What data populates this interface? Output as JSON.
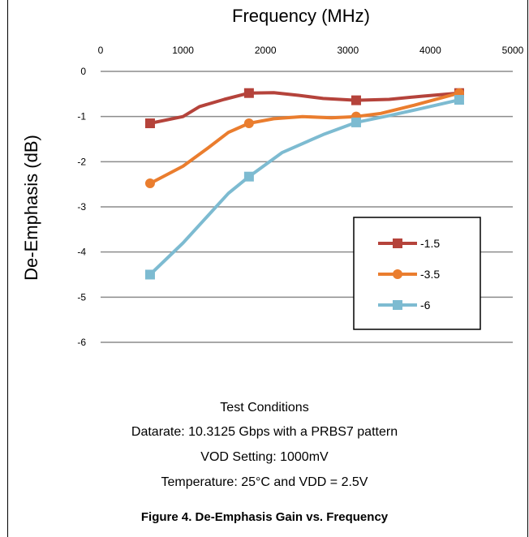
{
  "chart_data": {
    "type": "line",
    "title": "",
    "xlabel": "Frequency (MHz)",
    "ylabel": "De-Emphasis (dB)",
    "xlim": [
      0,
      5000
    ],
    "ylim": [
      -6,
      0
    ],
    "x_ticks": [
      0,
      1000,
      2000,
      3000,
      4000,
      5000
    ],
    "y_ticks": [
      0,
      -1,
      -2,
      -3,
      -4,
      -5,
      -6
    ],
    "x_axis_position": "top",
    "grid": "horizontal",
    "legend_position": "bottom-right inside plot",
    "series": [
      {
        "name": "-1.5",
        "color": "#b5433b",
        "marker": "square",
        "x": [
          600,
          1800,
          3100,
          4350
        ],
        "y": [
          -1.15,
          -0.48,
          -0.64,
          -0.48
        ],
        "curve": [
          [
            600,
            -1.15
          ],
          [
            1000,
            -1.0
          ],
          [
            1200,
            -0.78
          ],
          [
            1500,
            -0.62
          ],
          [
            1800,
            -0.48
          ],
          [
            2100,
            -0.47
          ],
          [
            2400,
            -0.53
          ],
          [
            2700,
            -0.6
          ],
          [
            3100,
            -0.64
          ],
          [
            3500,
            -0.62
          ],
          [
            3900,
            -0.55
          ],
          [
            4350,
            -0.48
          ]
        ]
      },
      {
        "name": "-3.5",
        "color": "#ea7d2e",
        "marker": "circle",
        "x": [
          600,
          1800,
          3100,
          4350
        ],
        "y": [
          -2.48,
          -1.15,
          -1.0,
          -0.48
        ],
        "curve": [
          [
            600,
            -2.48
          ],
          [
            1000,
            -2.1
          ],
          [
            1300,
            -1.7
          ],
          [
            1550,
            -1.35
          ],
          [
            1800,
            -1.15
          ],
          [
            2100,
            -1.05
          ],
          [
            2450,
            -1.0
          ],
          [
            2800,
            -1.03
          ],
          [
            3100,
            -1.0
          ],
          [
            3400,
            -0.93
          ],
          [
            3800,
            -0.75
          ],
          [
            4350,
            -0.48
          ]
        ]
      },
      {
        "name": "-6",
        "color": "#7dbbd1",
        "marker": "square",
        "x": [
          600,
          1800,
          3100,
          4350
        ],
        "y": [
          -4.5,
          -2.33,
          -1.13,
          -0.63
        ],
        "curve": [
          [
            600,
            -4.5
          ],
          [
            1000,
            -3.8
          ],
          [
            1300,
            -3.2
          ],
          [
            1550,
            -2.7
          ],
          [
            1800,
            -2.33
          ],
          [
            2200,
            -1.8
          ],
          [
            2700,
            -1.4
          ],
          [
            3100,
            -1.13
          ],
          [
            3500,
            -0.98
          ],
          [
            3900,
            -0.82
          ],
          [
            4350,
            -0.63
          ]
        ]
      }
    ]
  },
  "conditions": {
    "title": "Test Conditions",
    "line1": "Datarate: 10.3125 Gbps with a PRBS7 pattern",
    "line2": "VOD Setting: 1000mV",
    "line3": "Temperature: 25°C and VDD = 2.5V"
  },
  "caption": "Figure 4. De-Emphasis Gain vs. Frequency"
}
